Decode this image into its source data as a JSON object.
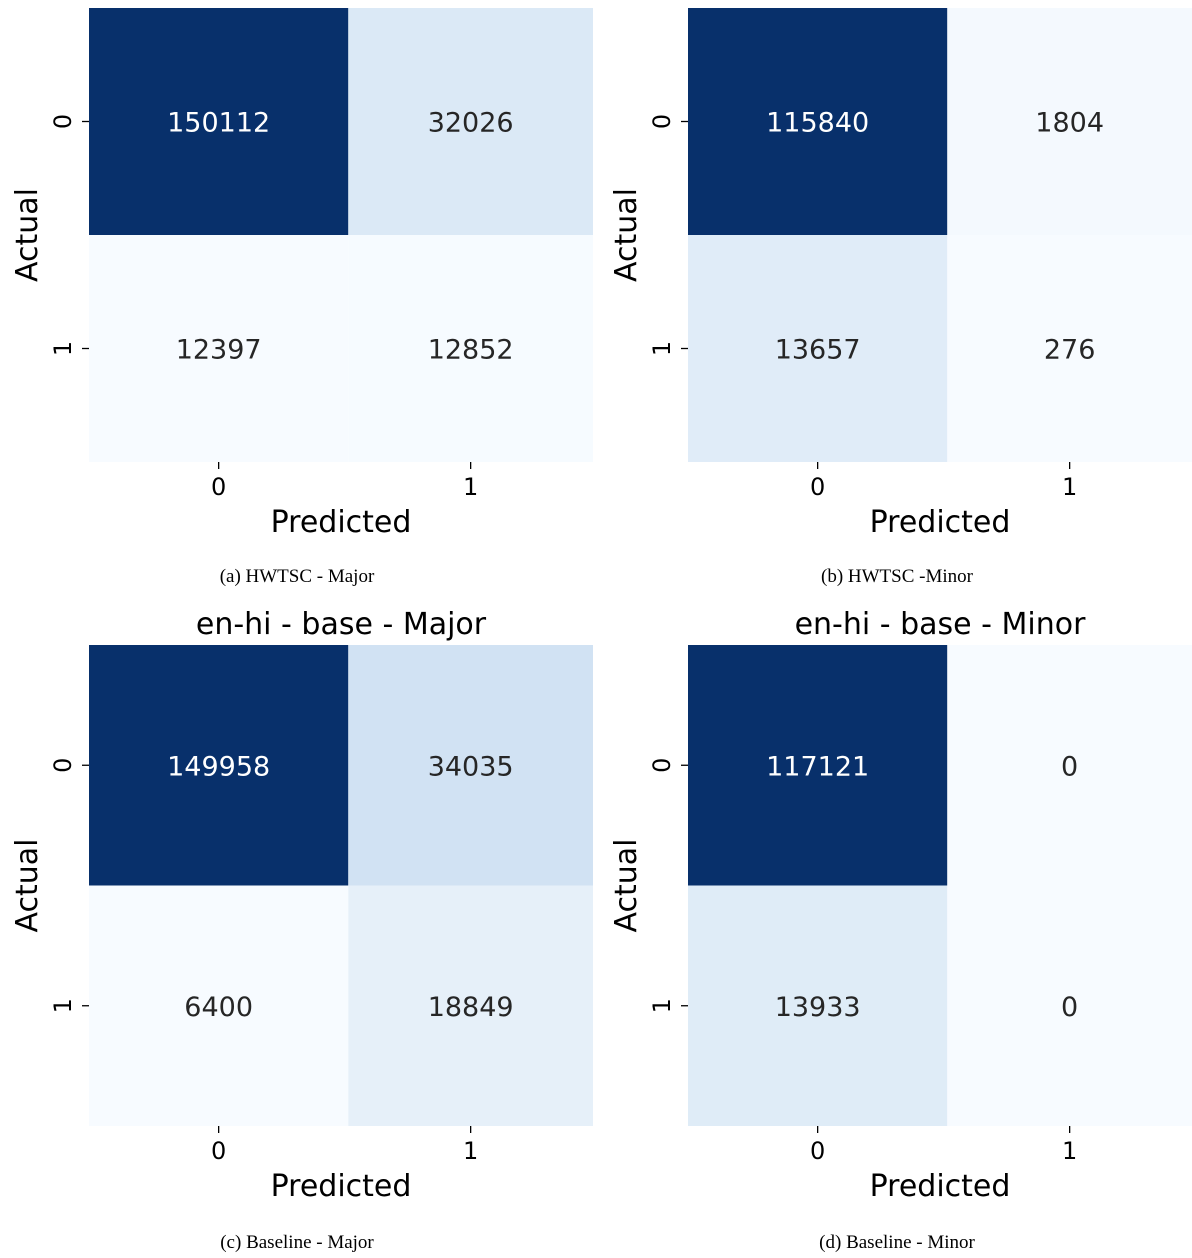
{
  "figure": {
    "panels": [
      {
        "caption": "(a) HWTSC - Major"
      },
      {
        "caption": "(b) HWTSC -Minor"
      },
      {
        "caption": "(c) Baseline - Major"
      },
      {
        "caption": "(d) Baseline - Minor"
      }
    ]
  },
  "colors": {
    "dark": "#08306b",
    "light": "#f7fbff",
    "text_on_dark": "#ffffff",
    "text_on_light": "#262626"
  },
  "chart_data": [
    {
      "type": "heatmap",
      "title": "",
      "xlabel": "Predicted",
      "ylabel": "Actual",
      "x_categories": [
        "0",
        "1"
      ],
      "y_categories": [
        "0",
        "1"
      ],
      "values": [
        [
          150112,
          32026
        ],
        [
          12397,
          12852
        ]
      ],
      "colorbar": false
    },
    {
      "type": "heatmap",
      "title": "",
      "xlabel": "Predicted",
      "ylabel": "Actual",
      "x_categories": [
        "0",
        "1"
      ],
      "y_categories": [
        "0",
        "1"
      ],
      "values": [
        [
          115840,
          1804
        ],
        [
          13657,
          276
        ]
      ],
      "colorbar": false
    },
    {
      "type": "heatmap",
      "title": "en-hi - base - Major",
      "xlabel": "Predicted",
      "ylabel": "Actual",
      "x_categories": [
        "0",
        "1"
      ],
      "y_categories": [
        "0",
        "1"
      ],
      "values": [
        [
          149958,
          34035
        ],
        [
          6400,
          18849
        ]
      ],
      "colorbar": false
    },
    {
      "type": "heatmap",
      "title": "en-hi - base - Minor",
      "xlabel": "Predicted",
      "ylabel": "Actual",
      "x_categories": [
        "0",
        "1"
      ],
      "y_categories": [
        "0",
        "1"
      ],
      "values": [
        [
          117121,
          0
        ],
        [
          13933,
          0
        ]
      ],
      "colorbar": false
    }
  ]
}
